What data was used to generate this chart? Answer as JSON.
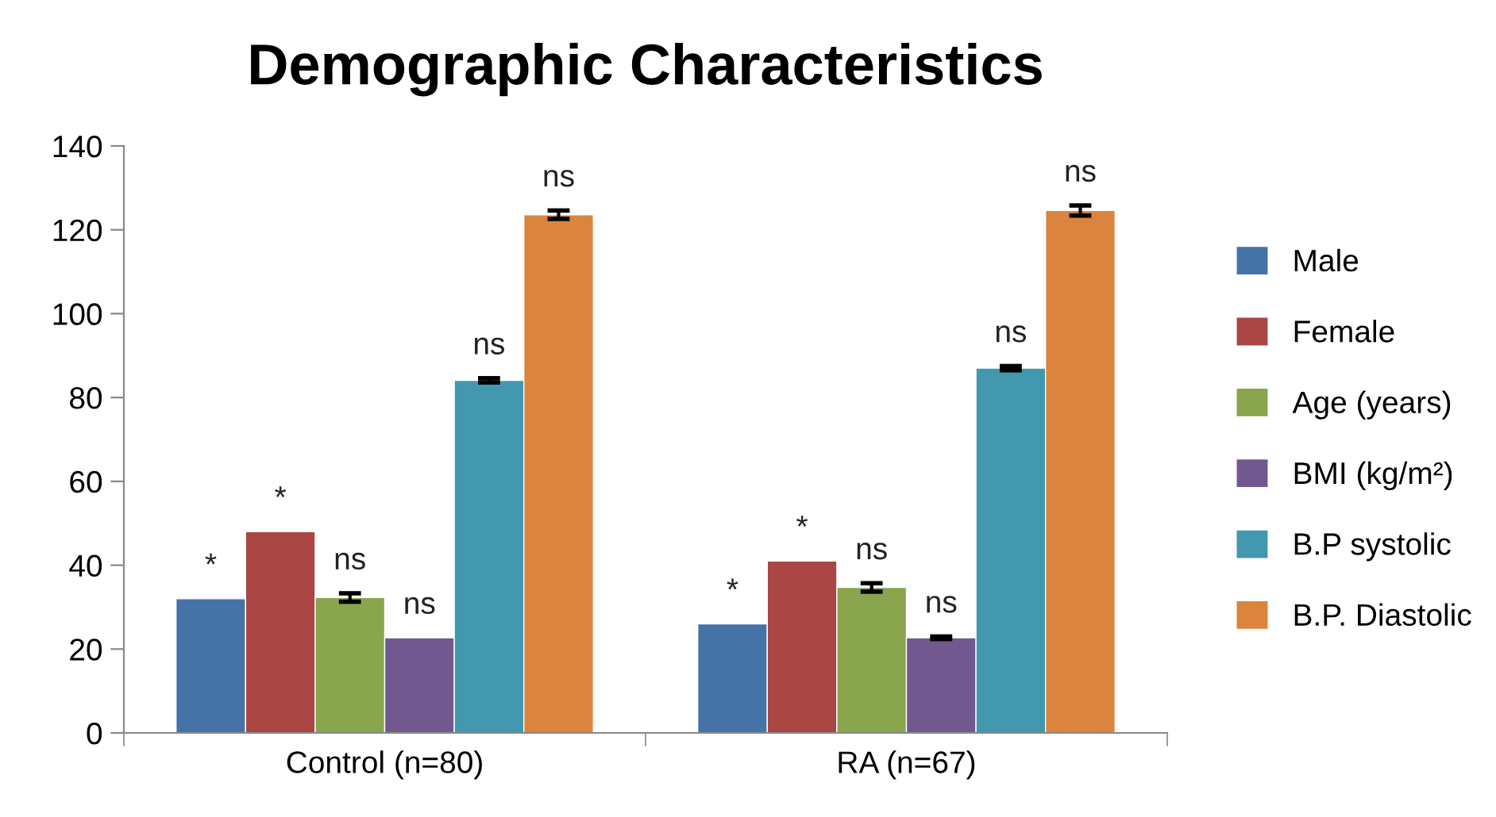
{
  "chart_data": {
    "type": "bar",
    "title": "Demographic Characteristics",
    "categories": [
      "Control (n=80)",
      "RA (n=67)"
    ],
    "series": [
      {
        "name": "Male",
        "color": "#4572a7",
        "values": [
          32,
          26
        ],
        "errors": [
          null,
          null
        ]
      },
      {
        "name": "Female",
        "color": "#aa4643",
        "values": [
          48,
          41
        ],
        "errors": [
          null,
          null
        ]
      },
      {
        "name": "Age (years)",
        "color": "#89a54e",
        "values": [
          32.3,
          34.7
        ],
        "errors": [
          1,
          1
        ]
      },
      {
        "name": "BMI (kg/m²)",
        "color": "#71588f",
        "values": [
          22.7,
          22.7
        ],
        "errors": [
          null,
          0.3
        ]
      },
      {
        "name": "B.P systolic",
        "color": "#4198af",
        "values": [
          84.1,
          87
        ],
        "errors": [
          0.5,
          0.5
        ]
      },
      {
        "name": "B.P. Diastolic",
        "color": "#db843d",
        "values": [
          123.6,
          124.6
        ],
        "errors": [
          1,
          1.2
        ]
      }
    ],
    "ylim": [
      0,
      140
    ],
    "yticks": [
      0,
      20,
      40,
      60,
      80,
      100,
      120,
      140
    ],
    "grid": false,
    "legend": "right",
    "annotations": [
      "*",
      "*",
      "ns",
      "ns",
      "ns",
      "ns",
      "*",
      "*",
      "ns",
      "ns",
      "ns",
      "ns"
    ]
  }
}
